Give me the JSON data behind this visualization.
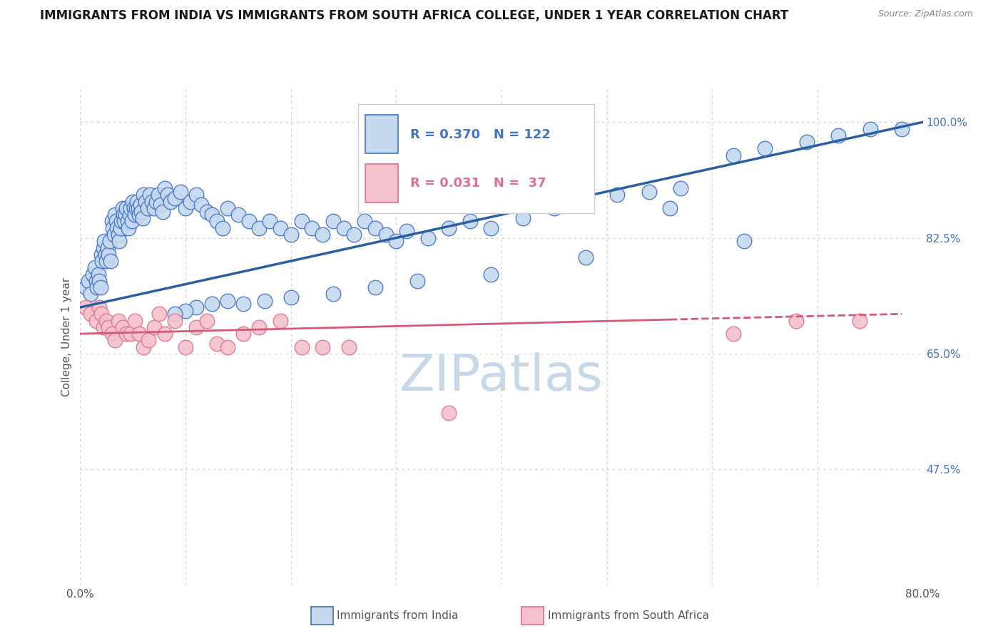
{
  "title": "IMMIGRANTS FROM INDIA VS IMMIGRANTS FROM SOUTH AFRICA COLLEGE, UNDER 1 YEAR CORRELATION CHART",
  "source": "Source: ZipAtlas.com",
  "ylabel": "College, Under 1 year",
  "xlim": [
    0.0,
    0.8
  ],
  "ylim": [
    0.3,
    1.05
  ],
  "x_ticks": [
    0.0,
    0.1,
    0.2,
    0.3,
    0.4,
    0.5,
    0.6,
    0.7,
    0.8
  ],
  "y_ticks": [
    0.475,
    0.65,
    0.825,
    1.0
  ],
  "y_tick_labels": [
    "47.5%",
    "65.0%",
    "82.5%",
    "100.0%"
  ],
  "india_R": 0.37,
  "india_N": 122,
  "sa_R": 0.031,
  "sa_N": 37,
  "india_color": "#c5d9ef",
  "india_edge_color": "#4472c4",
  "sa_color": "#f4c2cc",
  "sa_edge_color": "#e07090",
  "india_line_color": "#2b5fa5",
  "sa_line_color": "#d45a78",
  "watermark_color": "#c8d8e8",
  "grid_color": "#d0d0d0",
  "india_line_x": [
    0.0,
    0.8
  ],
  "india_line_y": [
    0.72,
    1.0
  ],
  "sa_line_x": [
    0.0,
    0.78
  ],
  "sa_line_y": [
    0.68,
    0.71
  ],
  "india_scatter_x": [
    0.005,
    0.008,
    0.01,
    0.012,
    0.014,
    0.015,
    0.016,
    0.017,
    0.018,
    0.019,
    0.02,
    0.021,
    0.022,
    0.023,
    0.024,
    0.025,
    0.026,
    0.027,
    0.028,
    0.029,
    0.03,
    0.031,
    0.032,
    0.033,
    0.034,
    0.035,
    0.036,
    0.037,
    0.038,
    0.039,
    0.04,
    0.041,
    0.042,
    0.043,
    0.044,
    0.045,
    0.046,
    0.047,
    0.048,
    0.049,
    0.05,
    0.051,
    0.052,
    0.053,
    0.054,
    0.055,
    0.056,
    0.057,
    0.058,
    0.059,
    0.06,
    0.062,
    0.064,
    0.066,
    0.068,
    0.07,
    0.072,
    0.074,
    0.076,
    0.078,
    0.08,
    0.083,
    0.086,
    0.09,
    0.095,
    0.1,
    0.105,
    0.11,
    0.115,
    0.12,
    0.125,
    0.13,
    0.135,
    0.14,
    0.15,
    0.16,
    0.17,
    0.18,
    0.19,
    0.2,
    0.21,
    0.22,
    0.23,
    0.24,
    0.25,
    0.26,
    0.27,
    0.28,
    0.29,
    0.3,
    0.31,
    0.33,
    0.35,
    0.37,
    0.39,
    0.42,
    0.45,
    0.48,
    0.51,
    0.54,
    0.57,
    0.62,
    0.65,
    0.69,
    0.72,
    0.75,
    0.78,
    0.63,
    0.56,
    0.48,
    0.39,
    0.32,
    0.28,
    0.24,
    0.2,
    0.175,
    0.155,
    0.14,
    0.125,
    0.11,
    0.1,
    0.09
  ],
  "india_scatter_y": [
    0.75,
    0.76,
    0.74,
    0.77,
    0.78,
    0.76,
    0.75,
    0.77,
    0.76,
    0.75,
    0.8,
    0.79,
    0.81,
    0.82,
    0.8,
    0.79,
    0.81,
    0.8,
    0.82,
    0.79,
    0.85,
    0.84,
    0.83,
    0.86,
    0.85,
    0.84,
    0.83,
    0.82,
    0.84,
    0.85,
    0.87,
    0.86,
    0.85,
    0.86,
    0.87,
    0.85,
    0.84,
    0.86,
    0.87,
    0.85,
    0.88,
    0.87,
    0.86,
    0.87,
    0.88,
    0.87,
    0.86,
    0.875,
    0.865,
    0.855,
    0.89,
    0.88,
    0.87,
    0.89,
    0.88,
    0.87,
    0.88,
    0.89,
    0.875,
    0.865,
    0.9,
    0.89,
    0.88,
    0.885,
    0.895,
    0.87,
    0.88,
    0.89,
    0.875,
    0.865,
    0.86,
    0.85,
    0.84,
    0.87,
    0.86,
    0.85,
    0.84,
    0.85,
    0.84,
    0.83,
    0.85,
    0.84,
    0.83,
    0.85,
    0.84,
    0.83,
    0.85,
    0.84,
    0.83,
    0.82,
    0.835,
    0.825,
    0.84,
    0.85,
    0.84,
    0.855,
    0.87,
    0.875,
    0.89,
    0.895,
    0.9,
    0.95,
    0.96,
    0.97,
    0.98,
    0.99,
    0.99,
    0.82,
    0.87,
    0.795,
    0.77,
    0.76,
    0.75,
    0.74,
    0.735,
    0.73,
    0.725,
    0.73,
    0.725,
    0.72,
    0.715,
    0.71
  ],
  "sa_scatter_x": [
    0.005,
    0.01,
    0.015,
    0.018,
    0.02,
    0.022,
    0.025,
    0.027,
    0.03,
    0.033,
    0.036,
    0.04,
    0.044,
    0.048,
    0.052,
    0.056,
    0.06,
    0.065,
    0.07,
    0.075,
    0.08,
    0.09,
    0.1,
    0.11,
    0.12,
    0.13,
    0.14,
    0.155,
    0.17,
    0.19,
    0.21,
    0.23,
    0.255,
    0.35,
    0.62,
    0.68,
    0.74
  ],
  "sa_scatter_y": [
    0.72,
    0.71,
    0.7,
    0.72,
    0.71,
    0.69,
    0.7,
    0.69,
    0.68,
    0.67,
    0.7,
    0.69,
    0.68,
    0.68,
    0.7,
    0.68,
    0.66,
    0.67,
    0.69,
    0.71,
    0.68,
    0.7,
    0.66,
    0.69,
    0.7,
    0.665,
    0.66,
    0.68,
    0.69,
    0.7,
    0.66,
    0.66,
    0.66,
    0.56,
    0.68,
    0.7,
    0.7
  ],
  "title_fontsize": 12,
  "label_fontsize": 11,
  "tick_fontsize": 11,
  "legend_fontsize": 13
}
